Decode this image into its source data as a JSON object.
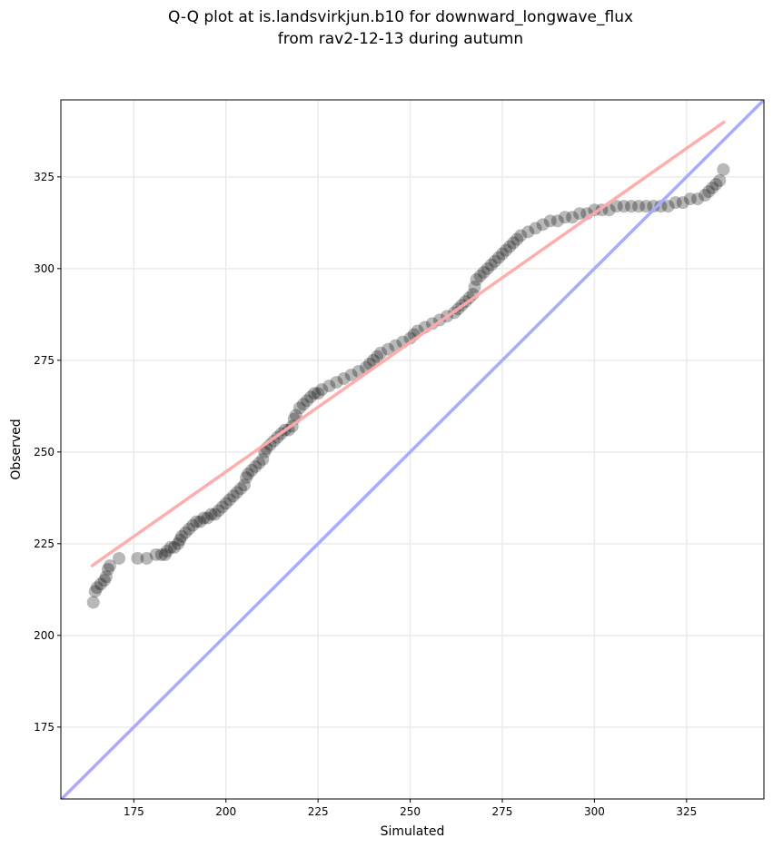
{
  "chart_data": {
    "type": "scatter",
    "title_lines": [
      "Q-Q plot at is.landsvirkjun.b10 for downward_longwave_flux",
      "from rav2-12-13 during autumn"
    ],
    "xlabel": "Simulated",
    "ylabel": "Observed",
    "xlim": [
      155.2,
      346
    ],
    "ylim": [
      155.4,
      346
    ],
    "xticks": [
      175,
      200,
      225,
      250,
      275,
      300,
      325
    ],
    "yticks": [
      175,
      200,
      225,
      250,
      275,
      300,
      325
    ],
    "grid": true,
    "colors": {
      "points": "#000000",
      "fit_line": "#ffaaaa",
      "identity_line": "#aaaaff"
    },
    "fit_line": {
      "x": [
        163.4,
        335.4
      ],
      "y": [
        218.8,
        340.1
      ]
    },
    "identity_line": {
      "x": [
        155,
        346
      ],
      "y": [
        155,
        346
      ]
    },
    "points": [
      [
        164,
        209
      ],
      [
        164.5,
        212
      ],
      [
        165,
        213
      ],
      [
        166,
        214
      ],
      [
        167,
        215
      ],
      [
        167.5,
        216
      ],
      [
        168,
        218
      ],
      [
        168.5,
        219
      ],
      [
        171,
        221
      ],
      [
        176,
        221
      ],
      [
        178.5,
        221
      ],
      [
        181,
        222
      ],
      [
        182.5,
        222
      ],
      [
        183.5,
        222
      ],
      [
        184,
        223
      ],
      [
        185,
        224
      ],
      [
        186,
        224
      ],
      [
        187,
        225
      ],
      [
        187.5,
        226
      ],
      [
        188,
        227
      ],
      [
        189,
        228
      ],
      [
        190,
        229
      ],
      [
        191,
        230
      ],
      [
        192,
        231
      ],
      [
        193,
        231
      ],
      [
        194,
        232
      ],
      [
        195,
        232
      ],
      [
        196,
        233
      ],
      [
        197,
        233
      ],
      [
        198,
        234
      ],
      [
        199,
        235
      ],
      [
        200,
        236
      ],
      [
        201,
        237
      ],
      [
        202,
        238
      ],
      [
        203,
        239
      ],
      [
        204,
        240
      ],
      [
        205,
        241
      ],
      [
        205.5,
        243
      ],
      [
        206,
        244
      ],
      [
        207,
        245
      ],
      [
        208,
        246
      ],
      [
        209,
        247
      ],
      [
        210,
        248
      ],
      [
        210.5,
        250
      ],
      [
        211,
        251
      ],
      [
        212,
        252
      ],
      [
        213,
        253
      ],
      [
        214,
        254
      ],
      [
        215,
        255
      ],
      [
        216,
        256
      ],
      [
        217,
        256
      ],
      [
        218,
        257
      ],
      [
        218.5,
        259
      ],
      [
        219,
        260
      ],
      [
        220,
        262
      ],
      [
        221,
        263
      ],
      [
        222,
        264
      ],
      [
        223,
        265
      ],
      [
        224,
        266
      ],
      [
        225,
        266
      ],
      [
        226,
        267
      ],
      [
        228,
        268
      ],
      [
        230,
        269
      ],
      [
        232,
        270
      ],
      [
        234,
        271
      ],
      [
        236,
        272
      ],
      [
        238,
        273
      ],
      [
        239,
        274
      ],
      [
        240,
        275
      ],
      [
        241,
        276
      ],
      [
        242,
        277
      ],
      [
        244,
        278
      ],
      [
        246,
        279
      ],
      [
        248,
        280
      ],
      [
        250,
        281
      ],
      [
        251,
        282
      ],
      [
        252,
        283
      ],
      [
        254,
        284
      ],
      [
        256,
        285
      ],
      [
        258,
        286
      ],
      [
        260,
        287
      ],
      [
        262,
        288
      ],
      [
        263,
        289
      ],
      [
        264,
        290
      ],
      [
        265,
        291
      ],
      [
        266,
        292
      ],
      [
        267,
        293
      ],
      [
        267.5,
        295
      ],
      [
        268,
        297
      ],
      [
        269,
        298
      ],
      [
        270,
        299
      ],
      [
        271,
        300
      ],
      [
        272,
        301
      ],
      [
        273,
        302
      ],
      [
        274,
        303
      ],
      [
        275,
        304
      ],
      [
        276,
        305
      ],
      [
        277,
        306
      ],
      [
        278,
        307
      ],
      [
        279,
        308
      ],
      [
        280,
        309
      ],
      [
        282,
        310
      ],
      [
        284,
        311
      ],
      [
        286,
        312
      ],
      [
        288,
        313
      ],
      [
        290,
        313
      ],
      [
        292,
        314
      ],
      [
        294,
        314
      ],
      [
        296,
        315
      ],
      [
        298,
        315
      ],
      [
        300,
        316
      ],
      [
        302,
        316
      ],
      [
        304,
        316
      ],
      [
        306,
        317
      ],
      [
        308,
        317
      ],
      [
        310,
        317
      ],
      [
        312,
        317
      ],
      [
        314,
        317
      ],
      [
        316,
        317
      ],
      [
        318,
        317
      ],
      [
        320,
        317
      ],
      [
        322,
        318
      ],
      [
        324,
        318
      ],
      [
        326,
        319
      ],
      [
        328,
        319
      ],
      [
        330,
        320
      ],
      [
        331,
        321
      ],
      [
        332,
        322
      ],
      [
        333,
        323
      ],
      [
        334,
        324
      ],
      [
        335,
        327
      ]
    ]
  }
}
